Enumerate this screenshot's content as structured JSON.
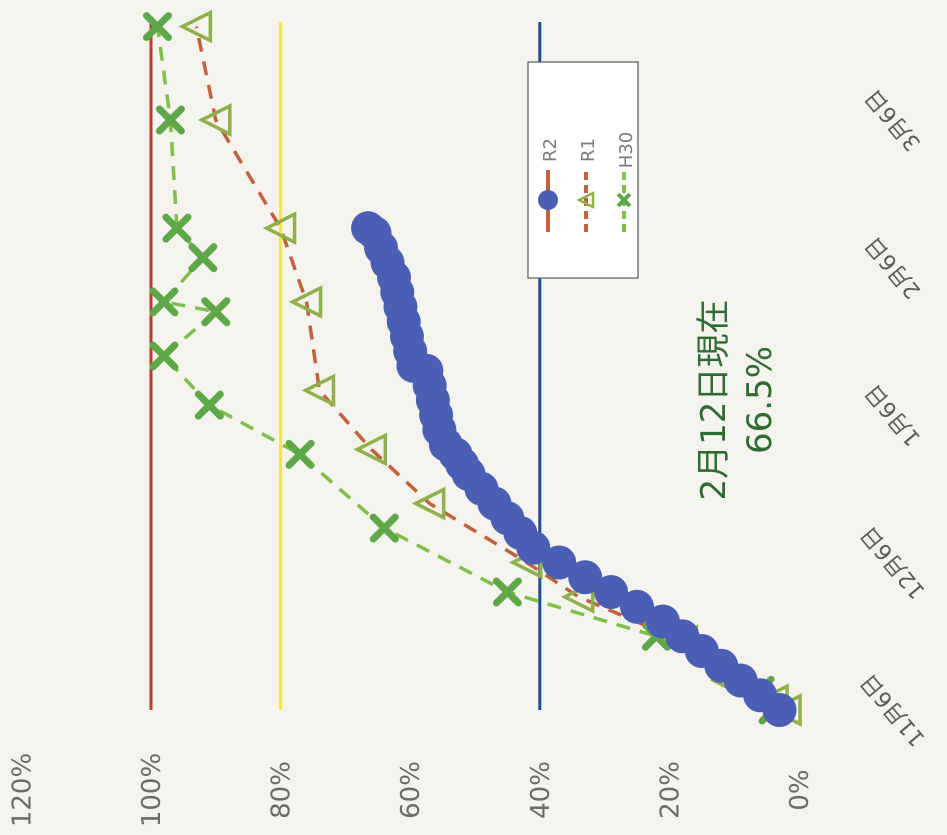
{
  "chart_data": {
    "type": "line",
    "title": "",
    "xlabel": "",
    "ylabel": "",
    "ylim": [
      0,
      1.2
    ],
    "y_ticks": [
      "0%",
      "20%",
      "40%",
      "60%",
      "80%",
      "100%",
      "120%"
    ],
    "x_ticks": [
      "11月6日",
      "12月6日",
      "1月6日",
      "2月6日",
      "3月6日"
    ],
    "grid": false,
    "legend": "right",
    "reference_lines": [
      {
        "value": 1.0,
        "color": "#c0392b"
      },
      {
        "value": 0.8,
        "color": "#f2e93a"
      },
      {
        "value": 0.4,
        "color": "#1f4e96"
      }
    ],
    "series": [
      {
        "name": "R2",
        "color": "#4a5fb3",
        "line_color": "#c0623e",
        "marker": "circle",
        "dash": false,
        "x": [
          "11-06",
          "11-09",
          "11-12",
          "11-15",
          "11-18",
          "11-21",
          "11-24",
          "11-27",
          "11-30",
          "12-03",
          "12-06",
          "12-09",
          "12-12",
          "12-15",
          "12-18",
          "12-21",
          "12-24",
          "12-26",
          "12-28",
          "12-30",
          "01-02",
          "01-05",
          "01-08",
          "01-11",
          "01-14",
          "01-15",
          "01-18",
          "01-21",
          "01-24",
          "01-27",
          "01-30",
          "02-02",
          "02-05",
          "02-08",
          "02-11",
          "02-12"
        ],
        "y": [
          0.03,
          0.06,
          0.09,
          0.12,
          0.15,
          0.18,
          0.21,
          0.25,
          0.29,
          0.33,
          0.37,
          0.41,
          0.43,
          0.45,
          0.47,
          0.49,
          0.51,
          0.52,
          0.53,
          0.545,
          0.555,
          0.56,
          0.565,
          0.57,
          0.575,
          0.595,
          0.6,
          0.605,
          0.61,
          0.615,
          0.62,
          0.625,
          0.635,
          0.645,
          0.655,
          0.665
        ]
      },
      {
        "name": "R1",
        "color": "#8fb04a",
        "line_color": "#c0623e",
        "marker": "triangle",
        "dash": true,
        "x": [
          "11-06",
          "11-08",
          "11-12",
          "11-20",
          "11-29",
          "12-06",
          "12-18",
          "12-29",
          "01-10",
          "01-28",
          "02-12",
          "03-06",
          "03-25"
        ],
        "y": [
          0.02,
          0.04,
          0.11,
          0.18,
          0.34,
          0.42,
          0.57,
          0.66,
          0.74,
          0.76,
          0.8,
          0.9,
          0.93
        ],
        "labels": {}
      },
      {
        "name": "H30",
        "color": "#5fa84a",
        "line_color": "#7fbf4a",
        "marker": "x",
        "dash": true,
        "x": [
          "11-06",
          "11-10",
          "11-21",
          "11-30",
          "12-13",
          "12-28",
          "01-07",
          "01-17",
          "01-26",
          "01-28",
          "02-06",
          "02-12",
          "03-06",
          "03-25"
        ],
        "y": [
          0.04,
          0.06,
          0.22,
          0.45,
          0.64,
          0.77,
          0.91,
          0.98,
          0.9,
          0.98,
          0.92,
          0.96,
          0.97,
          0.99
        ]
      }
    ],
    "annotation": {
      "line1": "2月12日現在",
      "line2": "66.5%"
    }
  }
}
